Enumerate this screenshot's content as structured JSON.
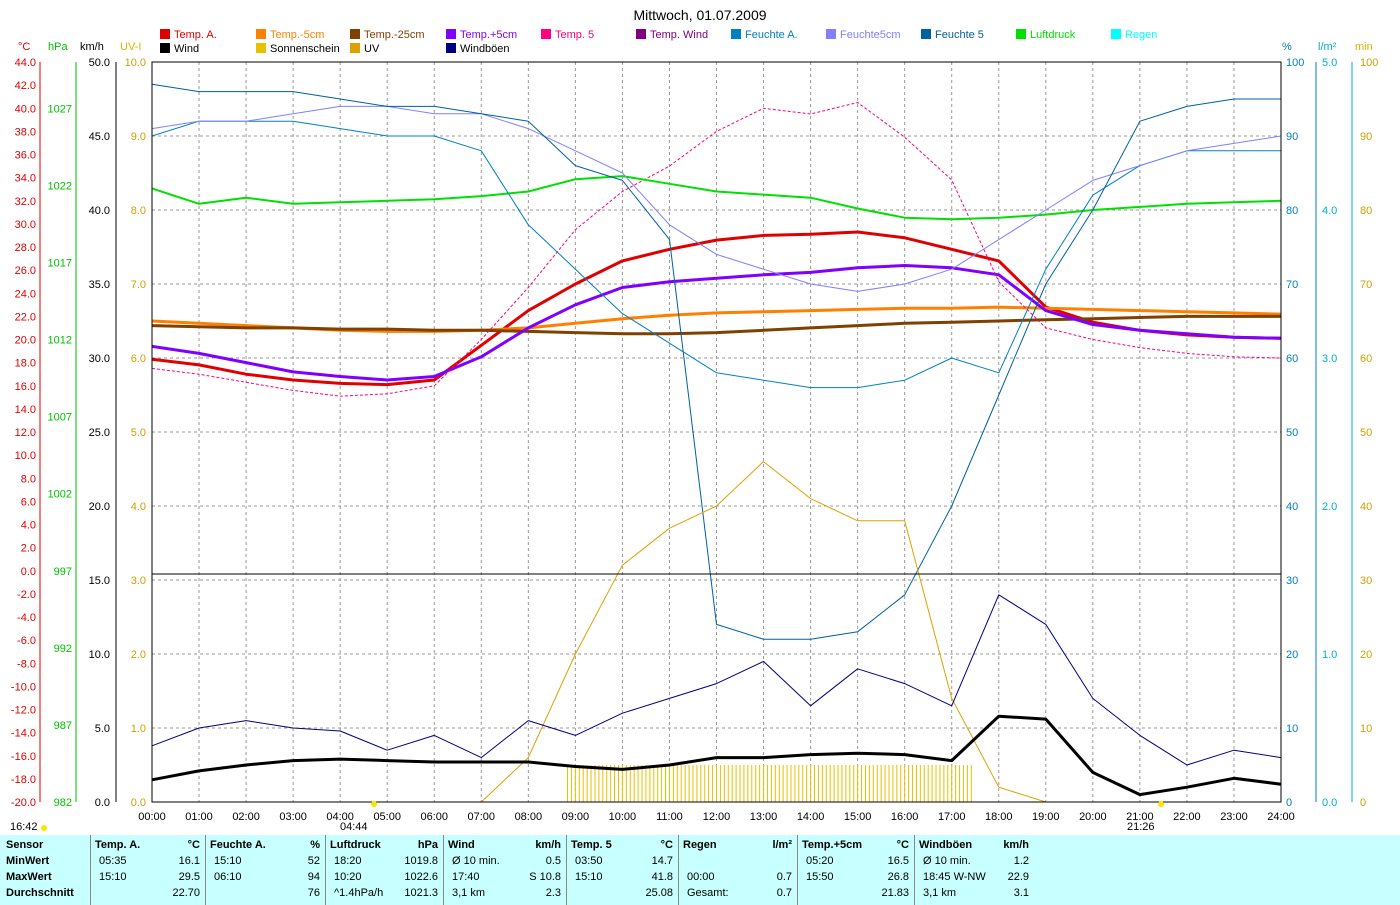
{
  "title": "Mittwoch, 01.07.2009",
  "axes": {
    "temp_unit": "°C",
    "hpa_unit": "hPa",
    "kmh_unit": "km/h",
    "uv_unit": "UV-I",
    "pct_unit": "%",
    "lm2_unit": "l/m²",
    "min_unit": "min",
    "temp_ticks": [
      "44.0",
      "42.0",
      "40.0",
      "38.0",
      "36.0",
      "34.0",
      "32.0",
      "30.0",
      "28.0",
      "26.0",
      "24.0",
      "22.0",
      "20.0",
      "18.0",
      "16.0",
      "14.0",
      "12.0",
      "10.0",
      "8.0",
      "6.0",
      "4.0",
      "2.0",
      "0.0",
      "-2.0",
      "-4.0",
      "-6.0",
      "-8.0",
      "-10.0",
      "-12.0",
      "-14.0",
      "-16.0",
      "-18.0",
      "-20.0"
    ],
    "hpa_ticks": [
      "1027",
      "1022",
      "1017",
      "1012",
      "1007",
      "1002",
      "997",
      "992",
      "987",
      "982"
    ],
    "kmh_ticks": [
      "50.0",
      "45.0",
      "40.0",
      "35.0",
      "30.0",
      "25.0",
      "20.0",
      "15.0",
      "10.0",
      "5.0",
      "0.0"
    ],
    "uv_ticks": [
      "10.0",
      "9.0",
      "8.0",
      "7.0",
      "6.0",
      "5.0",
      "4.0",
      "3.0",
      "2.0",
      "1.0",
      "0.0"
    ],
    "pct_ticks": [
      "100",
      "90",
      "80",
      "70",
      "60",
      "50",
      "40",
      "30",
      "20",
      "10",
      "0"
    ],
    "lm2_ticks": [
      "5.0",
      "4.0",
      "3.0",
      "2.0",
      "1.0",
      "0.0"
    ],
    "min_ticks": [
      "100",
      "90",
      "80",
      "70",
      "60",
      "50",
      "40",
      "30",
      "20",
      "10",
      "0"
    ],
    "time_ticks": [
      "00:00",
      "01:00",
      "02:00",
      "03:00",
      "04:00",
      "05:00",
      "06:00",
      "07:00",
      "08:00",
      "09:00",
      "10:00",
      "11:00",
      "12:00",
      "13:00",
      "14:00",
      "15:00",
      "16:00",
      "17:00",
      "18:00",
      "19:00",
      "20:00",
      "21:00",
      "22:00",
      "23:00",
      "24:00"
    ],
    "sunrise": "04:44",
    "sunset": "21:26",
    "left_time": "16:42"
  },
  "legend": [
    {
      "label": "Temp. A.",
      "color": "#e00000"
    },
    {
      "label": "Wind",
      "color": "#000000"
    },
    {
      "label": "Temp.-5cm",
      "color": "#ff8000"
    },
    {
      "label": "Sonnenschein",
      "color": "#e8c000"
    },
    {
      "label": "Temp.-25cm",
      "color": "#804000"
    },
    {
      "label": "UV",
      "color": "#e0a000"
    },
    {
      "label": "Temp.+5cm",
      "color": "#8000ff"
    },
    {
      "label": "Windböen",
      "color": "#000080"
    },
    {
      "label": "Temp. 5",
      "color": "#ff0080"
    },
    {
      "label": "Temp. Wind",
      "color": "#800080"
    },
    {
      "label": "Feuchte A.",
      "color": "#0080c0"
    },
    {
      "label": "Feuchte5cm",
      "color": "#8080ff"
    },
    {
      "label": "Feuchte 5",
      "color": "#0060a0"
    },
    {
      "label": "Luftdruck",
      "color": "#00e000"
    },
    {
      "label": "Regen",
      "color": "#00ffff"
    }
  ],
  "chart_data": {
    "type": "line",
    "title": "Mittwoch, 01.07.2009",
    "x_hours": [
      0,
      1,
      2,
      3,
      4,
      5,
      6,
      7,
      8,
      9,
      10,
      11,
      12,
      13,
      14,
      15,
      16,
      17,
      18,
      19,
      20,
      21,
      22,
      23,
      24
    ],
    "temp_range": [
      -20,
      44
    ],
    "series": [
      {
        "name": "Temp. A.",
        "axis": "temp",
        "values": [
          18.3,
          17.8,
          17.0,
          16.5,
          16.2,
          16.1,
          16.5,
          19.5,
          22.5,
          24.8,
          26.8,
          27.8,
          28.6,
          29.0,
          29.1,
          29.3,
          28.8,
          27.8,
          26.8,
          22.8,
          21.5,
          20.8,
          20.4,
          20.2,
          20.1
        ]
      },
      {
        "name": "Temp.-5cm",
        "axis": "temp",
        "values": [
          21.6,
          21.4,
          21.2,
          21.0,
          20.8,
          20.7,
          20.7,
          20.8,
          21.0,
          21.4,
          21.8,
          22.1,
          22.3,
          22.4,
          22.5,
          22.6,
          22.7,
          22.7,
          22.8,
          22.7,
          22.6,
          22.5,
          22.4,
          22.3,
          22.2
        ]
      },
      {
        "name": "Temp.-25cm",
        "axis": "temp",
        "values": [
          21.2,
          21.1,
          21.0,
          21.0,
          20.9,
          20.9,
          20.8,
          20.8,
          20.7,
          20.6,
          20.5,
          20.5,
          20.6,
          20.8,
          21.0,
          21.2,
          21.4,
          21.5,
          21.6,
          21.7,
          21.8,
          21.9,
          22.0,
          22.0,
          22.0
        ]
      },
      {
        "name": "Temp.+5cm",
        "axis": "temp",
        "values": [
          19.4,
          18.8,
          18.0,
          17.2,
          16.8,
          16.5,
          16.8,
          18.5,
          21.0,
          23.0,
          24.5,
          25.0,
          25.3,
          25.6,
          25.8,
          26.2,
          26.4,
          26.2,
          25.6,
          22.5,
          21.3,
          20.8,
          20.5,
          20.2,
          20.1
        ]
      },
      {
        "name": "Temp. 5",
        "axis": "temp",
        "values": [
          17.5,
          17.0,
          16.3,
          15.6,
          15.1,
          15.3,
          16.0,
          20.0,
          24.5,
          29.5,
          32.8,
          35.0,
          38.0,
          40.0,
          39.5,
          40.5,
          37.5,
          33.8,
          25.0,
          21.0,
          20.0,
          19.3,
          18.8,
          18.5,
          18.4
        ]
      },
      {
        "name": "Luftdruck",
        "axis": "hpa",
        "values": [
          1021.8,
          1020.8,
          1021.2,
          1020.8,
          1020.9,
          1021.0,
          1021.1,
          1021.3,
          1021.6,
          1022.4,
          1022.6,
          1022.1,
          1021.6,
          1021.4,
          1021.2,
          1020.5,
          1019.9,
          1019.8,
          1019.9,
          1020.1,
          1020.4,
          1020.6,
          1020.8,
          1020.9,
          1021.0
        ]
      },
      {
        "name": "Feuchte A.",
        "axis": "pct",
        "values": [
          90,
          92,
          92,
          92,
          91,
          90,
          90,
          88,
          78,
          72,
          66,
          62,
          58,
          57,
          56,
          56,
          57,
          60,
          58,
          72,
          82,
          86,
          88,
          88,
          88
        ]
      },
      {
        "name": "Feuchte5cm",
        "axis": "pct",
        "values": [
          91,
          92,
          92,
          93,
          94,
          94,
          93,
          93,
          91,
          88,
          85,
          78,
          74,
          72,
          70,
          69,
          70,
          72,
          76,
          80,
          84,
          86,
          88,
          89,
          90
        ]
      },
      {
        "name": "Feuchte 5",
        "axis": "pct",
        "values": [
          97,
          96,
          96,
          96,
          95,
          94,
          94,
          93,
          92,
          86,
          84,
          76,
          24,
          22,
          22,
          23,
          28,
          40,
          55,
          70,
          80,
          92,
          94,
          95,
          95
        ]
      },
      {
        "name": "UV",
        "axis": "uv",
        "values": [
          0,
          0,
          0,
          0,
          0,
          0,
          0,
          0,
          0.6,
          2.0,
          3.2,
          3.7,
          4.0,
          4.6,
          4.1,
          3.8,
          3.8,
          1.4,
          0.2,
          0,
          0,
          0,
          0,
          0,
          0
        ]
      },
      {
        "name": "Wind",
        "axis": "kmh",
        "values": [
          1.5,
          2.1,
          2.5,
          2.8,
          2.9,
          2.8,
          2.7,
          2.7,
          2.7,
          2.4,
          2.2,
          2.5,
          3.0,
          3.0,
          3.2,
          3.3,
          3.2,
          2.8,
          5.8,
          5.6,
          2.0,
          0.5,
          1.0,
          1.6,
          1.2
        ]
      },
      {
        "name": "Windböen",
        "axis": "kmh",
        "values": [
          3.8,
          5.0,
          5.5,
          5.0,
          4.8,
          3.5,
          4.5,
          3.0,
          5.5,
          4.5,
          6.0,
          7.0,
          8.0,
          9.5,
          6.5,
          9.0,
          8.0,
          6.5,
          14.0,
          12.0,
          7.0,
          4.5,
          2.5,
          3.5,
          3.0
        ]
      }
    ],
    "sunshine_window": [
      "08:50",
      "17:30"
    ]
  },
  "summary": {
    "row_labels": [
      "Sensor",
      "MinWert",
      "MaxWert",
      "Durchschnitt"
    ],
    "cols": [
      {
        "head": "Temp. A.",
        "unit": "°C",
        "rows": [
          [
            "05:35",
            "16.1"
          ],
          [
            "15:10",
            "29.5"
          ],
          [
            "",
            "22.70"
          ]
        ]
      },
      {
        "head": "Feuchte A.",
        "unit": "%",
        "rows": [
          [
            "15:10",
            "52"
          ],
          [
            "06:10",
            "94"
          ],
          [
            "",
            "76"
          ]
        ]
      },
      {
        "head": "Luftdruck",
        "unit": "hPa",
        "rows": [
          [
            "18:20",
            "1019.8"
          ],
          [
            "10:20",
            "1022.6"
          ],
          [
            "^1.4hPa/h",
            "1021.3"
          ]
        ]
      },
      {
        "head": "Wind",
        "unit": "km/h",
        "rows": [
          [
            "Ø 10 min.",
            "0.5"
          ],
          [
            "17:40",
            "S 10.8"
          ],
          [
            "3,1 km",
            "2.3"
          ]
        ]
      },
      {
        "head": "Temp. 5",
        "unit": "°C",
        "rows": [
          [
            "03:50",
            "14.7"
          ],
          [
            "15:10",
            "41.8"
          ],
          [
            "",
            "25.08"
          ]
        ]
      },
      {
        "head": "Regen",
        "unit": "l/m²",
        "rows": [
          [
            "",
            ""
          ],
          [
            "00:00",
            "0.7"
          ],
          [
            "Gesamt:",
            "0.7"
          ]
        ]
      },
      {
        "head": "Temp.+5cm",
        "unit": "°C",
        "rows": [
          [
            "05:20",
            "16.5"
          ],
          [
            "15:50",
            "26.8"
          ],
          [
            "",
            "21.83"
          ]
        ]
      },
      {
        "head": "Windböen",
        "unit": "km/h",
        "rows": [
          [
            "Ø 10 min.",
            "1.2"
          ],
          [
            "18:45  W-NW",
            "22.9"
          ],
          [
            "3,1 km",
            "3.1"
          ]
        ]
      }
    ]
  }
}
